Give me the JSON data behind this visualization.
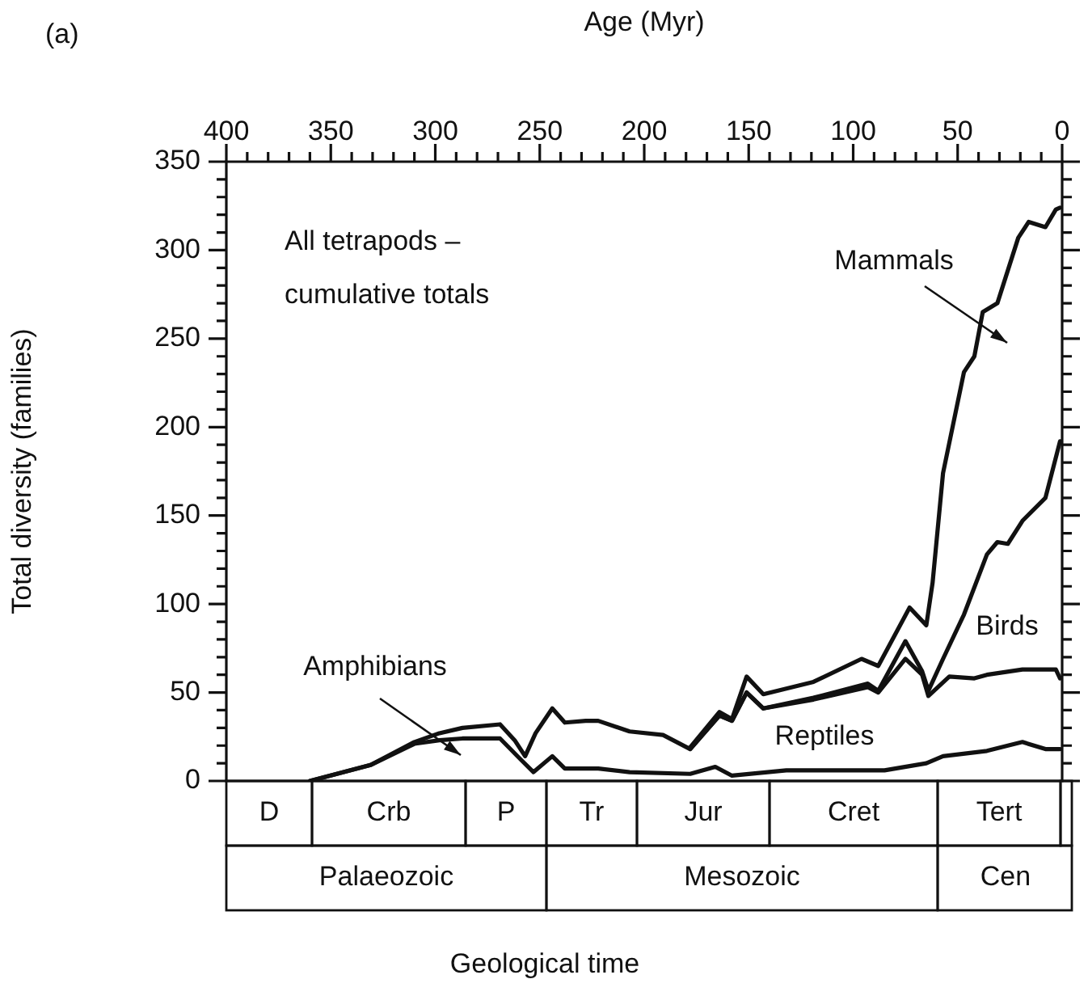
{
  "chart_data": {
    "type": "line",
    "xlabel": "Age (Myr)",
    "ylabel": "Total diversity (families)",
    "xlim": [
      400,
      0
    ],
    "xticks": [
      400,
      {
        "value": 390,
        "label": null
      },
      {
        "value": 380,
        "label": null
      },
      {
        "value": 370,
        "label": null
      },
      {
        "value": 360,
        "label": null
      },
      350,
      {
        "value": 340,
        "label": null
      },
      {
        "value": 330,
        "label": null
      },
      {
        "value": 320,
        "label": null
      },
      {
        "value": 310,
        "label": null
      },
      300,
      {
        "value": 290,
        "label": null
      },
      {
        "value": 280,
        "label": null
      },
      {
        "value": 270,
        "label": null
      },
      {
        "value": 260,
        "label": null
      },
      250,
      {
        "value": 240,
        "label": null
      },
      {
        "value": 230,
        "label": null
      },
      {
        "value": 220,
        "label": null
      },
      {
        "value": 210,
        "label": null
      },
      200,
      {
        "value": 190,
        "label": null
      },
      {
        "value": 180,
        "label": null
      },
      {
        "value": 170,
        "label": null
      },
      {
        "value": 160,
        "label": null
      },
      150,
      {
        "value": 140,
        "label": null
      },
      {
        "value": 130,
        "label": null
      },
      {
        "value": 120,
        "label": null
      },
      {
        "value": 110,
        "label": null
      },
      100,
      {
        "value": 90,
        "label": null
      },
      {
        "value": 80,
        "label": null
      },
      {
        "value": 70,
        "label": null
      },
      {
        "value": 60,
        "label": null
      },
      50,
      {
        "value": 40,
        "label": null
      },
      {
        "value": 30,
        "label": null
      },
      {
        "value": 20,
        "label": null
      },
      {
        "value": 10,
        "label": null
      },
      0
    ],
    "ylim": [
      0,
      350
    ],
    "yticks": [
      0,
      {
        "value": 10,
        "label": null
      },
      {
        "value": 20,
        "label": null
      },
      {
        "value": 30,
        "label": null
      },
      {
        "value": 40,
        "label": null
      },
      50,
      {
        "value": 60,
        "label": null
      },
      {
        "value": 70,
        "label": null
      },
      {
        "value": 80,
        "label": null
      },
      {
        "value": 90,
        "label": null
      },
      100,
      {
        "value": 110,
        "label": null
      },
      {
        "value": 120,
        "label": null
      },
      {
        "value": 130,
        "label": null
      },
      {
        "value": 140,
        "label": null
      },
      150,
      {
        "value": 160,
        "label": null
      },
      {
        "value": 170,
        "label": null
      },
      {
        "value": 180,
        "label": null
      },
      {
        "value": 190,
        "label": null
      },
      200,
      {
        "value": 210,
        "label": null
      },
      {
        "value": 220,
        "label": null
      },
      {
        "value": 230,
        "label": null
      },
      {
        "value": 240,
        "label": null
      },
      250,
      {
        "value": 260,
        "label": null
      },
      {
        "value": 270,
        "label": null
      },
      {
        "value": 280,
        "label": null
      },
      {
        "value": 290,
        "label": null
      },
      300,
      {
        "value": 310,
        "label": null
      },
      {
        "value": 320,
        "label": null
      },
      {
        "value": 330,
        "label": null
      },
      {
        "value": 340,
        "label": null
      },
      350
    ],
    "grid": false,
    "legend": false,
    "marker": "none",
    "series": [
      {
        "color": "#111111",
        "x": [
          360,
          331,
          310,
          298,
          287,
          269,
          259,
          253,
          244,
          238,
          222,
          207,
          178,
          166,
          158,
          132,
          85,
          65,
          57,
          36,
          19,
          8,
          1
        ],
        "values": [
          0,
          9,
          21,
          23,
          24,
          24,
          12,
          5,
          14,
          7,
          7,
          5,
          4,
          8,
          3,
          6,
          6,
          10,
          14,
          17,
          22,
          18,
          18
        ]
      },
      {
        "color": "#111111",
        "x": [
          360,
          331,
          310,
          298,
          287,
          269,
          262,
          257,
          252,
          244,
          238,
          228,
          222,
          207,
          191,
          178,
          164,
          158,
          151,
          143,
          119,
          93,
          88,
          75,
          67,
          64,
          54,
          42,
          36,
          19,
          3,
          1
        ],
        "values": [
          0,
          9,
          22,
          27,
          30,
          32,
          23,
          14,
          27,
          41,
          33,
          34,
          34,
          28,
          26,
          18,
          37,
          34,
          50,
          41,
          46,
          53,
          50,
          69,
          60,
          48,
          59,
          58,
          60,
          63,
          63,
          58
        ]
      },
      {
        "color": "#111111",
        "x": [
          178,
          164,
          158,
          151,
          143,
          119,
          93,
          88,
          75,
          67,
          64,
          57,
          47,
          36,
          31,
          26,
          19,
          8,
          1
        ],
        "values": [
          18,
          37,
          34,
          50,
          41,
          47,
          55,
          51,
          79,
          62,
          51,
          69,
          94,
          128,
          135,
          134,
          147,
          160,
          192
        ]
      },
      {
        "color": "#111111",
        "x": [
          178,
          164,
          158,
          151,
          143,
          119,
          96,
          88,
          73,
          65,
          62,
          57,
          47,
          42,
          38,
          31,
          21,
          16,
          8,
          3,
          1
        ],
        "values": [
          19,
          39,
          35,
          59,
          49,
          56,
          69,
          65,
          98,
          88,
          112,
          174,
          231,
          240,
          265,
          270,
          307,
          316,
          313,
          323,
          324
        ]
      }
    ],
    "annotations": [
      "(a)",
      "All tetrapods –\ncumulative totals",
      "Geological time",
      "Mammals",
      "Amphibians",
      "Reptiles",
      "Birds",
      "D",
      "Crb",
      "P",
      "Tr",
      "Jur",
      "Cret",
      "Tert",
      "Palaeozoic",
      "Mesozoic",
      "Cen"
    ]
  }
}
